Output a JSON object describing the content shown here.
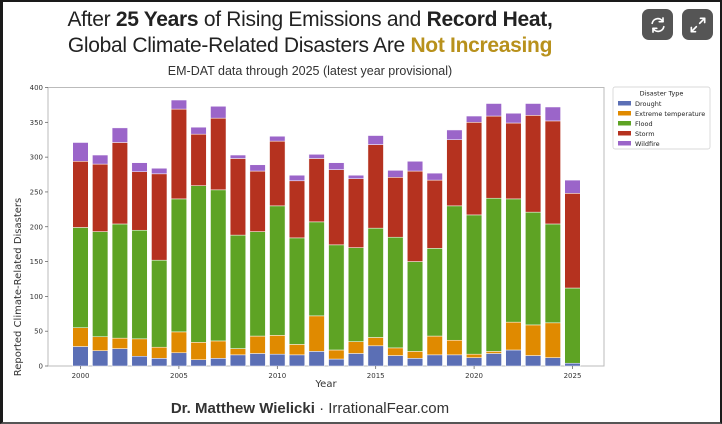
{
  "header": {
    "title_line1": {
      "pre": "After ",
      "bold1": "25 Years",
      "mid": " of Rising Emissions and ",
      "bold2": "Record Heat,"
    },
    "title_line2": {
      "pre": "Global Climate-Related Disasters Are ",
      "highlight": "Not Increasing"
    },
    "subtitle": "EM-DAT data through 2025 (latest year provisional)",
    "highlight_color": "#b8911c"
  },
  "buttons": {
    "refresh": {
      "icon": "refresh-icon"
    },
    "expand": {
      "icon": "expand-icon"
    }
  },
  "footer": {
    "author": "Dr. Matthew Wielicki",
    "separator": " · ",
    "site": "IrrationalFear.com"
  },
  "chart_data": {
    "type": "bar",
    "stacked": true,
    "title": "After 25 Years of Rising Emissions and Record Heat, Global Climate-Related Disasters Are Not Increasing",
    "subtitle": "EM-DAT data through 2025 (latest year provisional)",
    "xlabel": "Year",
    "ylabel": "Reported Climate-Related Disasters",
    "ylim": [
      0,
      400
    ],
    "yticks": [
      0,
      50,
      100,
      150,
      200,
      250,
      300,
      350,
      400
    ],
    "xticks": [
      2000,
      2005,
      2010,
      2015,
      2020,
      2025
    ],
    "grid": false,
    "legend": {
      "title": "Disaster Type",
      "position": "right"
    },
    "categories": [
      2000,
      2001,
      2002,
      2003,
      2004,
      2005,
      2006,
      2007,
      2008,
      2009,
      2010,
      2011,
      2012,
      2013,
      2014,
      2015,
      2016,
      2017,
      2018,
      2019,
      2020,
      2021,
      2022,
      2023,
      2024,
      2025
    ],
    "series": [
      {
        "name": "Drought",
        "color": "#5b6fb5",
        "values": [
          28,
          22,
          25,
          14,
          11,
          19,
          9,
          11,
          16,
          18,
          17,
          16,
          21,
          10,
          18,
          29,
          15,
          11,
          16,
          16,
          12,
          18,
          23,
          15,
          12,
          4
        ]
      },
      {
        "name": "Extreme temperature",
        "color": "#e08a00",
        "values": [
          27,
          20,
          15,
          25,
          16,
          30,
          25,
          25,
          9,
          25,
          27,
          15,
          51,
          13,
          17,
          12,
          11,
          10,
          27,
          21,
          5,
          3,
          40,
          44,
          50,
          0
        ]
      },
      {
        "name": "Flood",
        "color": "#5ea324",
        "values": [
          144,
          151,
          164,
          156,
          125,
          191,
          225,
          217,
          163,
          150,
          186,
          153,
          135,
          151,
          135,
          157,
          159,
          129,
          126,
          193,
          200,
          220,
          177,
          162,
          142,
          108
        ]
      },
      {
        "name": "Storm",
        "color": "#b5321f",
        "values": [
          95,
          97,
          117,
          84,
          124,
          129,
          74,
          103,
          110,
          87,
          93,
          82,
          91,
          108,
          99,
          120,
          86,
          130,
          98,
          95,
          133,
          118,
          109,
          139,
          148,
          136
        ]
      },
      {
        "name": "Wildfire",
        "color": "#9b65c9",
        "values": [
          27,
          13,
          21,
          13,
          8,
          13,
          10,
          17,
          5,
          9,
          7,
          8,
          6,
          10,
          5,
          13,
          10,
          14,
          10,
          14,
          9,
          18,
          14,
          17,
          20,
          19
        ]
      }
    ]
  }
}
